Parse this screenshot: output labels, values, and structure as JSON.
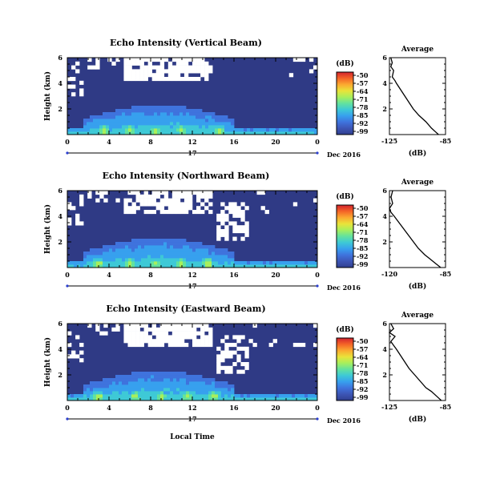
{
  "figure": {
    "date_label": "Dec 2016",
    "xlabel": "Local Time"
  },
  "colors": {
    "colormap": [
      "#303f8f",
      "#3d55b5",
      "#3f73dd",
      "#37a0ee",
      "#3ec9d6",
      "#63e29e",
      "#a8ef5c",
      "#e9e33a",
      "#fbaa30",
      "#f46427",
      "#d2222e"
    ],
    "background": "#2f3a85"
  },
  "chart_data": [
    {
      "type": "heatmap",
      "title": "Echo Intensity (Vertical Beam)",
      "ylabel": "Height (km)",
      "x_ticks": [
        "0",
        "4",
        "8",
        "12",
        "16",
        "20",
        "0"
      ],
      "xlim": [
        0,
        24
      ],
      "y_ticks": [
        "2",
        "4",
        "6"
      ],
      "ylim": [
        0,
        6
      ],
      "day_label": "17",
      "date_label": "Dec 2016",
      "colorbar": {
        "unit": "(dB)",
        "ticks": [
          "-50",
          "-57",
          "-64",
          "-71",
          "-78",
          "-85",
          "-92",
          "-99"
        ]
      },
      "hotspots_hour_km": [
        [
          3.5,
          0.3
        ],
        [
          6.0,
          0.3
        ],
        [
          8.5,
          0.3
        ],
        [
          11.0,
          0.3
        ],
        [
          14.5,
          0.3
        ]
      ],
      "average_profile": {
        "title": "Average",
        "xlabel": "(dB)",
        "x_ticks": [
          "-125",
          "-85"
        ],
        "xlim": [
          -125,
          -85
        ],
        "y_ticks": [
          "2",
          "4",
          "6"
        ],
        "ylim": [
          0,
          6
        ],
        "height_km": [
          0.0,
          0.2,
          0.5,
          1.0,
          1.5,
          2.0,
          2.5,
          3.0,
          3.5,
          4.0,
          4.2,
          4.5,
          5.0,
          5.3,
          5.6,
          6.0
        ],
        "db": [
          -90,
          -92,
          -95,
          -99,
          -104,
          -108,
          -111,
          -114,
          -117,
          -120,
          -121,
          -123,
          -122,
          -124,
          -123,
          -124
        ]
      }
    },
    {
      "type": "heatmap",
      "title": "Echo Intensity (Northward Beam)",
      "ylabel": "Height (km)",
      "x_ticks": [
        "0",
        "4",
        "8",
        "12",
        "16",
        "20",
        "0"
      ],
      "xlim": [
        0,
        24
      ],
      "y_ticks": [
        "2",
        "4",
        "6"
      ],
      "ylim": [
        0,
        6
      ],
      "day_label": "17",
      "date_label": "Dec 2016",
      "colorbar": {
        "unit": "(dB)",
        "ticks": [
          "-50",
          "-57",
          "-64",
          "-71",
          "-78",
          "-85",
          "-92",
          "-99"
        ]
      },
      "hotspots_hour_km": [
        [
          3.0,
          0.3
        ],
        [
          6.0,
          0.3
        ],
        [
          8.5,
          0.3
        ],
        [
          11.0,
          0.3
        ],
        [
          13.5,
          0.3
        ]
      ],
      "average_profile": {
        "title": "Average",
        "xlabel": "(dB)",
        "x_ticks": [
          "-120",
          "-85"
        ],
        "xlim": [
          -120,
          -85
        ],
        "y_ticks": [
          "2",
          "4",
          "6"
        ],
        "ylim": [
          0,
          6
        ],
        "height_km": [
          0.0,
          0.3,
          0.7,
          1.0,
          1.5,
          2.0,
          2.5,
          3.0,
          3.5,
          4.0,
          4.3,
          4.6,
          5.0,
          5.5,
          6.0
        ],
        "db": [
          -88,
          -91,
          -95,
          -98,
          -102,
          -105,
          -108,
          -111,
          -114,
          -117,
          -119,
          -120,
          -118,
          -119,
          -118
        ]
      }
    },
    {
      "type": "heatmap",
      "title": "Echo Intensity (Eastward Beam)",
      "ylabel": "Height (km)",
      "x_ticks": [
        "0",
        "4",
        "8",
        "12",
        "16",
        "20",
        "0"
      ],
      "xlim": [
        0,
        24
      ],
      "y_ticks": [
        "2",
        "4",
        "6"
      ],
      "ylim": [
        0,
        6
      ],
      "day_label": "17",
      "date_label": "Dec 2016",
      "colorbar": {
        "unit": "(dB)",
        "ticks": [
          "-50",
          "-57",
          "-64",
          "-71",
          "-78",
          "-85",
          "-92",
          "-99"
        ]
      },
      "hotspots_hour_km": [
        [
          3.0,
          0.3
        ],
        [
          6.5,
          0.3
        ],
        [
          9.0,
          0.3
        ],
        [
          11.5,
          0.3
        ],
        [
          14.0,
          0.3
        ]
      ],
      "average_profile": {
        "title": "Average",
        "xlabel": "(dB)",
        "x_ticks": [
          "-125",
          "-85"
        ],
        "xlim": [
          -125,
          -85
        ],
        "y_ticks": [
          "2",
          "4",
          "6"
        ],
        "ylim": [
          0,
          6
        ],
        "height_km": [
          0.0,
          0.3,
          0.7,
          1.0,
          1.5,
          2.0,
          2.5,
          3.0,
          3.5,
          4.0,
          4.3,
          4.6,
          5.0,
          5.3,
          5.6,
          6.0
        ],
        "db": [
          -88,
          -91,
          -95,
          -99,
          -103,
          -107,
          -111,
          -114,
          -117,
          -120,
          -122,
          -124,
          -121,
          -125,
          -122,
          -124
        ]
      }
    }
  ]
}
